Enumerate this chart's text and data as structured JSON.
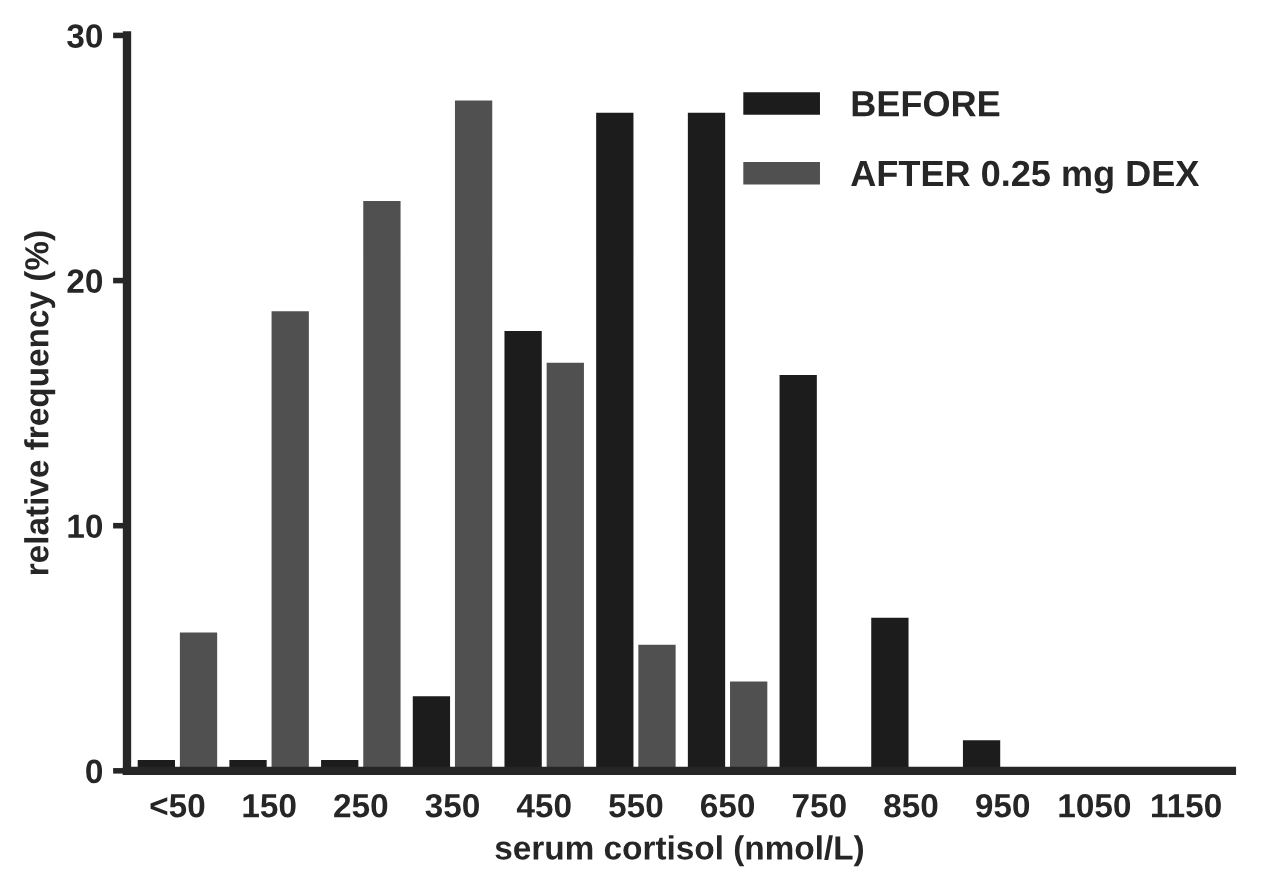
{
  "chart_data": {
    "type": "bar",
    "xlabel": "serum cortisol (nmol/L)",
    "ylabel": "relative frequency (%)",
    "categories": [
      "<50",
      "150",
      "250",
      "350",
      "450",
      "550",
      "650",
      "750",
      "850",
      "950",
      "1050",
      "1150"
    ],
    "series": [
      {
        "name": "BEFORE",
        "color": "#1c1c1c",
        "values": [
          0.5,
          0.5,
          0.5,
          3.1,
          18.0,
          26.9,
          26.9,
          16.2,
          6.3,
          1.3,
          null,
          null
        ]
      },
      {
        "name": "AFTER 0.25 mg DEX",
        "color": "#505050",
        "values": [
          5.7,
          18.8,
          23.3,
          27.4,
          16.7,
          5.2,
          3.7,
          null,
          null,
          null,
          null,
          null
        ]
      }
    ],
    "ylim": [
      0,
      30
    ],
    "yticks": [
      0,
      10,
      20,
      30
    ],
    "grid": false,
    "legend": "top right"
  }
}
